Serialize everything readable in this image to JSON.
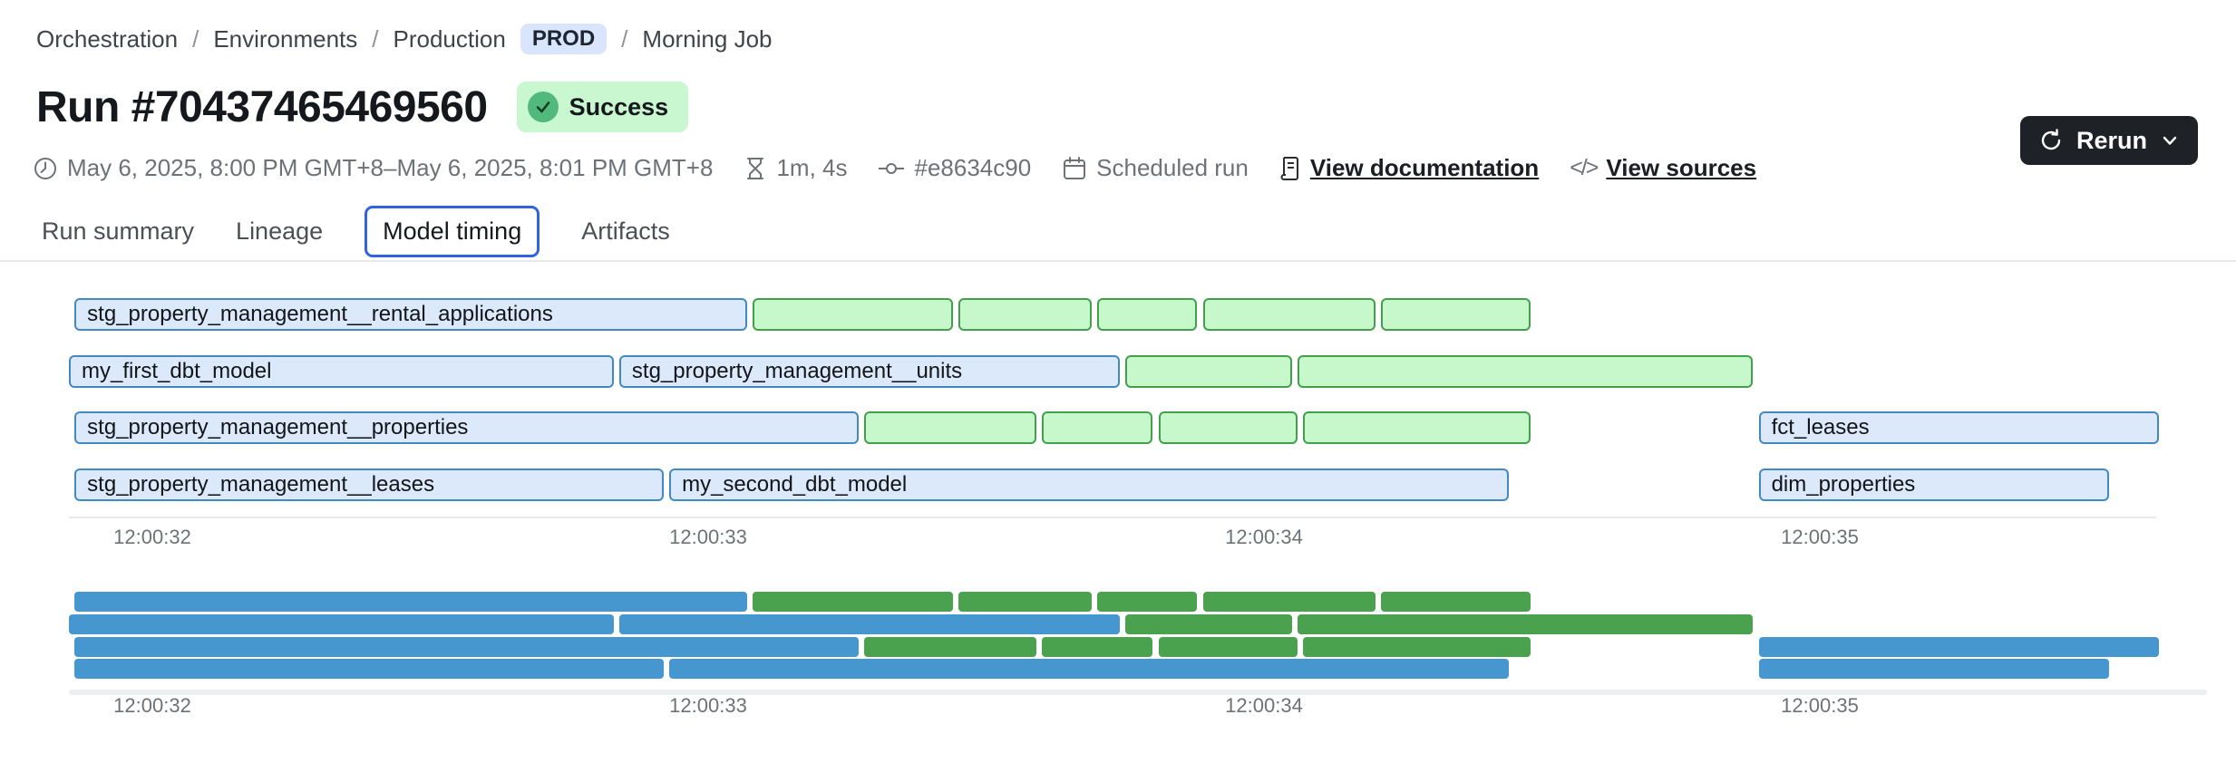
{
  "breadcrumb": {
    "separator": "/",
    "items": [
      "Orchestration",
      "Environments",
      "Production"
    ],
    "env_badge": "PROD",
    "current": "Morning Job"
  },
  "header": {
    "title": "Run #70437465469560",
    "status": "Success"
  },
  "meta": {
    "time_range": "May 6, 2025, 8:00 PM GMT+8–May 6, 2025, 8:01 PM GMT+8",
    "duration": "1m, 4s",
    "commit": "#e8634c90",
    "trigger": "Scheduled run",
    "documentation_link": "View documentation",
    "sources_link": "View sources",
    "code_glyph": "</>"
  },
  "toolbar": {
    "rerun_label": "Rerun"
  },
  "tabs": [
    "Run summary",
    "Lineage",
    "Model timing",
    "Artifacts"
  ],
  "active_tab": "Model timing",
  "chart_data": {
    "type": "gantt",
    "title": "Model timing",
    "x_axis": {
      "ticks": [
        {
          "label": "12:00:32",
          "t": 32
        },
        {
          "label": "12:00:33",
          "t": 33
        },
        {
          "label": "12:00:34",
          "t": 34
        },
        {
          "label": "12:00:35",
          "t": 35
        }
      ],
      "domain_seconds": [
        31.73,
        35.75
      ],
      "grid": false
    },
    "colors": {
      "gantt_blue_fill": "#dce9fa",
      "gantt_blue_border": "#4389c1",
      "gantt_green_fill": "#c6f8cc",
      "gantt_green_border": "#42a04b",
      "minimap_blue": "#4697d0",
      "minimap_green": "#4aa24e"
    },
    "rows": [
      [
        {
          "label": "stg_property_management__rental_applications",
          "start": 31.86,
          "end": 33.07,
          "color": "blue"
        },
        {
          "label": "",
          "start": 33.08,
          "end": 33.44,
          "color": "green"
        },
        {
          "label": "",
          "start": 33.45,
          "end": 33.69,
          "color": "green"
        },
        {
          "label": "",
          "start": 33.7,
          "end": 33.88,
          "color": "green"
        },
        {
          "label": "",
          "start": 33.89,
          "end": 34.2,
          "color": "green"
        },
        {
          "label": "",
          "start": 34.21,
          "end": 34.48,
          "color": "green"
        }
      ],
      [
        {
          "label": "my_first_dbt_model",
          "start": 31.85,
          "end": 32.83,
          "color": "blue"
        },
        {
          "label": "stg_property_management__units",
          "start": 32.84,
          "end": 33.74,
          "color": "blue"
        },
        {
          "label": "",
          "start": 33.75,
          "end": 34.05,
          "color": "green"
        },
        {
          "label": "",
          "start": 34.06,
          "end": 34.88,
          "color": "green"
        }
      ],
      [
        {
          "label": "stg_property_management__properties",
          "start": 31.86,
          "end": 33.27,
          "color": "blue"
        },
        {
          "label": "",
          "start": 33.28,
          "end": 33.59,
          "color": "green"
        },
        {
          "label": "",
          "start": 33.6,
          "end": 33.8,
          "color": "green"
        },
        {
          "label": "",
          "start": 33.81,
          "end": 34.06,
          "color": "green"
        },
        {
          "label": "",
          "start": 34.07,
          "end": 34.48,
          "color": "green"
        },
        {
          "label": "fct_leases",
          "start": 34.89,
          "end": 35.61,
          "color": "blue"
        }
      ],
      [
        {
          "label": "stg_property_management__leases",
          "start": 31.86,
          "end": 32.92,
          "color": "blue"
        },
        {
          "label": "my_second_dbt_model",
          "start": 32.93,
          "end": 34.44,
          "color": "blue"
        },
        {
          "label": "dim_properties",
          "start": 34.89,
          "end": 35.52,
          "color": "blue"
        }
      ]
    ]
  }
}
